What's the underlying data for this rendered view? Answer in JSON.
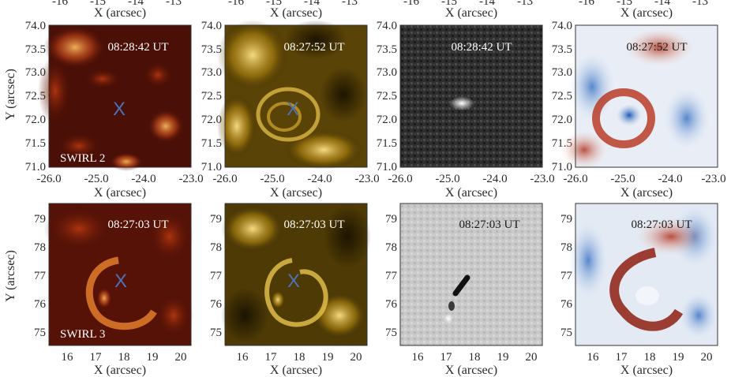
{
  "top_cut": {
    "ticks": [
      "-16",
      "-15",
      "-14",
      "-13"
    ],
    "xlabel": "X (arcsec)"
  },
  "rows": [
    {
      "id": "swirl-2",
      "ylabel": "Y (arcsec)",
      "xlabel": "X (arcsec)",
      "yticks": [
        "74.0",
        "73.5",
        "73.0",
        "72.5",
        "72.0",
        "71.5",
        "71.0"
      ],
      "xticks": [
        "-26.0",
        "-25.0",
        "-24.0",
        "-23.0"
      ],
      "label": "SWIRL 2",
      "marker": "X",
      "panels": [
        {
          "time": "08:28:42 UT",
          "colormap": "red-temperature"
        },
        {
          "time": "08:27:52 UT",
          "colormap": "gold"
        },
        {
          "time": "08:28:42 UT",
          "colormap": "grayscale"
        },
        {
          "time": "08:27:52 UT",
          "colormap": "red-blue"
        }
      ]
    },
    {
      "id": "swirl-3",
      "ylabel": "Y (arcsec)",
      "xlabel": "X (arcsec)",
      "yticks": [
        "79",
        "78",
        "77",
        "76",
        "75"
      ],
      "xticks": [
        "16",
        "17",
        "18",
        "19",
        "20"
      ],
      "label": "SWIRL 3",
      "marker": "X",
      "panels": [
        {
          "time": "08:27:03 UT",
          "colormap": "red-temperature"
        },
        {
          "time": "08:27:03 UT",
          "colormap": "gold"
        },
        {
          "time": "08:27:03 UT",
          "colormap": "grayscale"
        },
        {
          "time": "08:27:03 UT",
          "colormap": "red-blue"
        }
      ]
    }
  ]
}
